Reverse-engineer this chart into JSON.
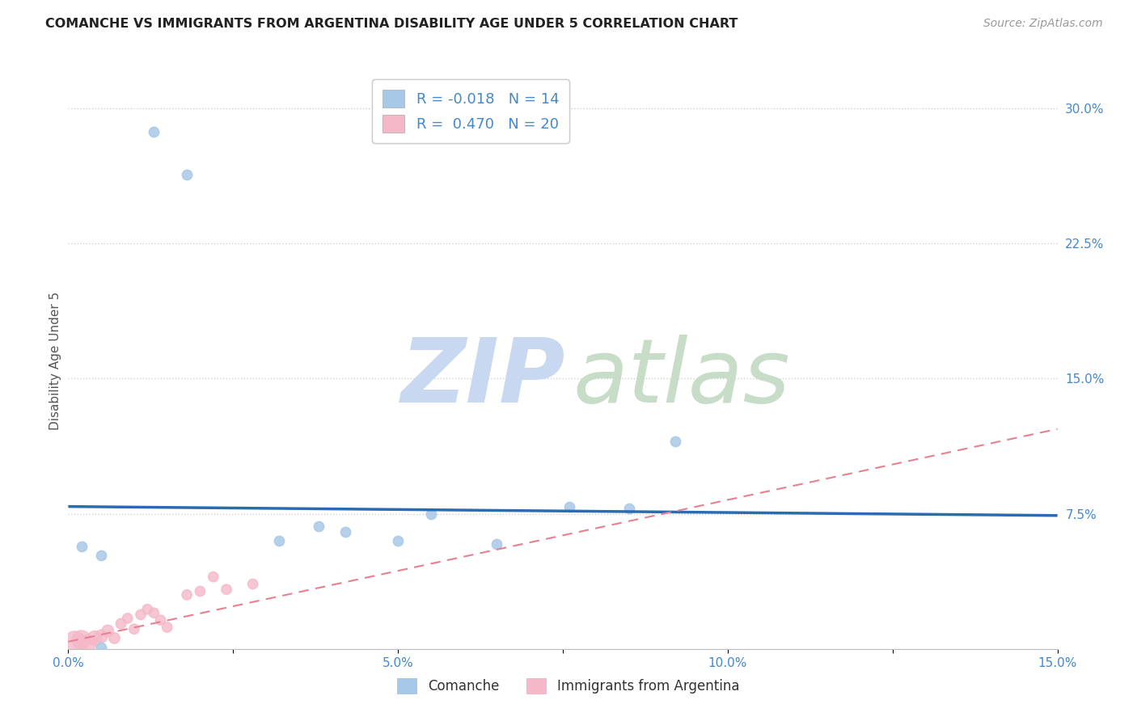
{
  "title": "COMANCHE VS IMMIGRANTS FROM ARGENTINA DISABILITY AGE UNDER 5 CORRELATION CHART",
  "source": "Source: ZipAtlas.com",
  "ylabel": "Disability Age Under 5",
  "xlim": [
    0,
    0.15
  ],
  "ylim": [
    0,
    0.32
  ],
  "xticks": [
    0.0,
    0.025,
    0.05,
    0.075,
    0.1,
    0.125,
    0.15
  ],
  "xticklabels": [
    "0.0%",
    "",
    "5.0%",
    "",
    "10.0%",
    "",
    "15.0%"
  ],
  "yticks_right": [
    0.075,
    0.15,
    0.225,
    0.3
  ],
  "ytick_labels_right": [
    "7.5%",
    "15.0%",
    "22.5%",
    "30.0%"
  ],
  "blue_color": "#a8c8e8",
  "pink_color": "#f4b8c8",
  "blue_line_color": "#2b6cb0",
  "pink_line_color": "#e88090",
  "grid_color": "#d0d0d0",
  "blue_R": "-0.018",
  "blue_N": "14",
  "pink_R": "0.470",
  "pink_N": "20",
  "blue_scatter_x": [
    0.013,
    0.018,
    0.032,
    0.005,
    0.042,
    0.055,
    0.065,
    0.076,
    0.085,
    0.005,
    0.002,
    0.038,
    0.05,
    0.092
  ],
  "blue_scatter_y": [
    0.287,
    0.263,
    0.06,
    0.052,
    0.065,
    0.075,
    0.058,
    0.079,
    0.078,
    0.001,
    0.057,
    0.068,
    0.06,
    0.115
  ],
  "blue_line_x0": 0.0,
  "blue_line_x1": 0.15,
  "blue_line_y0": 0.079,
  "blue_line_y1": 0.074,
  "pink_line_x0": 0.0,
  "pink_line_x1": 0.15,
  "pink_line_y0": 0.004,
  "pink_line_y1": 0.122,
  "pink_scatter_x": [
    0.001,
    0.002,
    0.003,
    0.004,
    0.005,
    0.006,
    0.007,
    0.008,
    0.009,
    0.01,
    0.011,
    0.012,
    0.013,
    0.014,
    0.015,
    0.018,
    0.02,
    0.022,
    0.024,
    0.028
  ],
  "pink_scatter_y": [
    0.004,
    0.005,
    0.003,
    0.006,
    0.007,
    0.01,
    0.006,
    0.014,
    0.017,
    0.011,
    0.019,
    0.022,
    0.02,
    0.016,
    0.012,
    0.03,
    0.032,
    0.04,
    0.033,
    0.036
  ],
  "pink_scatter_sizes": [
    350,
    280,
    220,
    160,
    130,
    110,
    95,
    85,
    80,
    80,
    80,
    80,
    80,
    80,
    80,
    80,
    80,
    80,
    80,
    80
  ],
  "blue_scatter_size": 80
}
